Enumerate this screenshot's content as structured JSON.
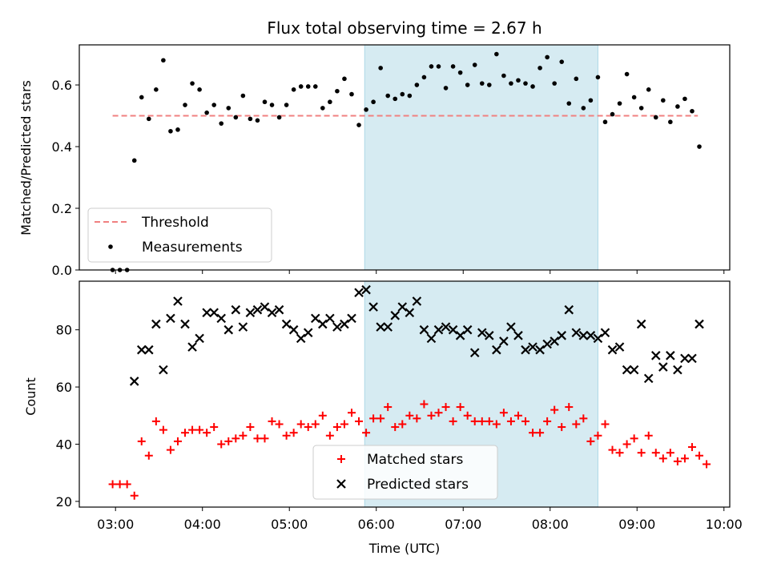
{
  "title": "Flux total observing time = 2.67 h",
  "colors": {
    "threshold": "#f08080",
    "measurements": "#000000",
    "matched": "#ff0000",
    "predicted": "#000000",
    "highlight": "#add8e6"
  },
  "chart_data": [
    {
      "type": "scatter",
      "ylabel": "Matched/Predicted stars",
      "ylim": [
        0,
        0.73
      ],
      "yticks": [
        "0.0",
        "0.2",
        "0.4",
        "0.6"
      ],
      "xlim": [
        "02:35",
        "10:04"
      ],
      "highlight_span": [
        "05:52",
        "08:33"
      ],
      "legend": {
        "position": "lower-left",
        "entries": [
          "Threshold",
          "Measurements"
        ]
      },
      "threshold": {
        "name": "Threshold",
        "y": 0.5,
        "x_range": [
          "02:58",
          "09:42"
        ]
      },
      "series": [
        {
          "name": "Measurements",
          "points": [
            [
              "02:58",
              0.0
            ],
            [
              "03:03",
              0.0
            ],
            [
              "03:08",
              0.0
            ],
            [
              "03:13",
              0.355
            ],
            [
              "03:18",
              0.56
            ],
            [
              "03:23",
              0.49
            ],
            [
              "03:28",
              0.585
            ],
            [
              "03:33",
              0.68
            ],
            [
              "03:38",
              0.45
            ],
            [
              "03:43",
              0.455
            ],
            [
              "03:48",
              0.535
            ],
            [
              "03:53",
              0.605
            ],
            [
              "03:58",
              0.585
            ],
            [
              "04:03",
              0.51
            ],
            [
              "04:08",
              0.535
            ],
            [
              "04:13",
              0.475
            ],
            [
              "04:18",
              0.525
            ],
            [
              "04:23",
              0.495
            ],
            [
              "04:28",
              0.565
            ],
            [
              "04:33",
              0.49
            ],
            [
              "04:38",
              0.485
            ],
            [
              "04:43",
              0.545
            ],
            [
              "04:48",
              0.535
            ],
            [
              "04:53",
              0.495
            ],
            [
              "04:58",
              0.535
            ],
            [
              "05:03",
              0.585
            ],
            [
              "05:08",
              0.595
            ],
            [
              "05:13",
              0.595
            ],
            [
              "05:18",
              0.595
            ],
            [
              "05:23",
              0.525
            ],
            [
              "05:28",
              0.545
            ],
            [
              "05:33",
              0.58
            ],
            [
              "05:38",
              0.62
            ],
            [
              "05:43",
              0.57
            ],
            [
              "05:48",
              0.47
            ],
            [
              "05:53",
              0.52
            ],
            [
              "05:58",
              0.545
            ],
            [
              "06:03",
              0.655
            ],
            [
              "06:08",
              0.565
            ],
            [
              "06:13",
              0.555
            ],
            [
              "06:18",
              0.57
            ],
            [
              "06:23",
              0.565
            ],
            [
              "06:28",
              0.6
            ],
            [
              "06:33",
              0.625
            ],
            [
              "06:38",
              0.66
            ],
            [
              "06:43",
              0.66
            ],
            [
              "06:48",
              0.59
            ],
            [
              "06:53",
              0.66
            ],
            [
              "06:58",
              0.64
            ],
            [
              "07:03",
              0.6
            ],
            [
              "07:08",
              0.665
            ],
            [
              "07:13",
              0.605
            ],
            [
              "07:18",
              0.6
            ],
            [
              "07:23",
              0.7
            ],
            [
              "07:28",
              0.63
            ],
            [
              "07:33",
              0.605
            ],
            [
              "07:38",
              0.615
            ],
            [
              "07:43",
              0.605
            ],
            [
              "07:48",
              0.595
            ],
            [
              "07:53",
              0.655
            ],
            [
              "07:58",
              0.69
            ],
            [
              "08:03",
              0.605
            ],
            [
              "08:08",
              0.675
            ],
            [
              "08:13",
              0.54
            ],
            [
              "08:18",
              0.62
            ],
            [
              "08:23",
              0.525
            ],
            [
              "08:28",
              0.55
            ],
            [
              "08:33",
              0.625
            ],
            [
              "08:38",
              0.48
            ],
            [
              "08:43",
              0.505
            ],
            [
              "08:48",
              0.54
            ],
            [
              "08:53",
              0.635
            ],
            [
              "08:58",
              0.56
            ],
            [
              "09:03",
              0.525
            ],
            [
              "09:08",
              0.585
            ],
            [
              "09:13",
              0.495
            ],
            [
              "09:18",
              0.55
            ],
            [
              "09:23",
              0.48
            ],
            [
              "09:28",
              0.53
            ],
            [
              "09:33",
              0.555
            ],
            [
              "09:38",
              0.515
            ],
            [
              "09:43",
              0.4
            ]
          ]
        }
      ]
    },
    {
      "type": "scatter",
      "ylabel": "Count",
      "xlabel": "Time (UTC)",
      "ylim": [
        18,
        97
      ],
      "yticks": [
        "20",
        "40",
        "60",
        "80"
      ],
      "xlim": [
        "02:35",
        "10:04"
      ],
      "xticks": [
        "03:00",
        "04:00",
        "05:00",
        "06:00",
        "07:00",
        "08:00",
        "09:00",
        "10:00"
      ],
      "highlight_span": [
        "05:52",
        "08:33"
      ],
      "legend": {
        "position": "lower-center",
        "entries": [
          "Matched stars",
          "Predicted stars"
        ]
      },
      "series": [
        {
          "name": "Matched stars",
          "marker": "plus",
          "points": [
            [
              "02:58",
              26
            ],
            [
              "03:03",
              26
            ],
            [
              "03:08",
              26
            ],
            [
              "03:13",
              22
            ],
            [
              "03:18",
              41
            ],
            [
              "03:23",
              36
            ],
            [
              "03:28",
              48
            ],
            [
              "03:33",
              45
            ],
            [
              "03:38",
              38
            ],
            [
              "03:43",
              41
            ],
            [
              "03:48",
              44
            ],
            [
              "03:53",
              45
            ],
            [
              "03:58",
              45
            ],
            [
              "04:03",
              44
            ],
            [
              "04:08",
              46
            ],
            [
              "04:13",
              40
            ],
            [
              "04:18",
              41
            ],
            [
              "04:23",
              42
            ],
            [
              "04:28",
              43
            ],
            [
              "04:33",
              46
            ],
            [
              "04:38",
              42
            ],
            [
              "04:43",
              42
            ],
            [
              "04:48",
              48
            ],
            [
              "04:53",
              47
            ],
            [
              "04:58",
              43
            ],
            [
              "05:03",
              44
            ],
            [
              "05:08",
              47
            ],
            [
              "05:13",
              46
            ],
            [
              "05:18",
              47
            ],
            [
              "05:23",
              50
            ],
            [
              "05:28",
              43
            ],
            [
              "05:33",
              46
            ],
            [
              "05:38",
              47
            ],
            [
              "05:43",
              51
            ],
            [
              "05:48",
              48
            ],
            [
              "05:53",
              44
            ],
            [
              "05:58",
              49
            ],
            [
              "06:03",
              49
            ],
            [
              "06:08",
              53
            ],
            [
              "06:13",
              46
            ],
            [
              "06:18",
              47
            ],
            [
              "06:23",
              50
            ],
            [
              "06:28",
              49
            ],
            [
              "06:33",
              54
            ],
            [
              "06:38",
              50
            ],
            [
              "06:43",
              51
            ],
            [
              "06:48",
              53
            ],
            [
              "06:53",
              48
            ],
            [
              "06:58",
              53
            ],
            [
              "07:03",
              50
            ],
            [
              "07:08",
              48
            ],
            [
              "07:13",
              48
            ],
            [
              "07:18",
              48
            ],
            [
              "07:23",
              47
            ],
            [
              "07:28",
              51
            ],
            [
              "07:33",
              48
            ],
            [
              "07:38",
              50
            ],
            [
              "07:43",
              48
            ],
            [
              "07:48",
              44
            ],
            [
              "07:53",
              44
            ],
            [
              "07:58",
              48
            ],
            [
              "08:03",
              52
            ],
            [
              "08:08",
              46
            ],
            [
              "08:13",
              53
            ],
            [
              "08:18",
              47
            ],
            [
              "08:23",
              49
            ],
            [
              "08:28",
              41
            ],
            [
              "08:33",
              43
            ],
            [
              "08:38",
              47
            ],
            [
              "08:43",
              38
            ],
            [
              "08:48",
              37
            ],
            [
              "08:53",
              40
            ],
            [
              "08:58",
              42
            ],
            [
              "09:03",
              37
            ],
            [
              "09:08",
              43
            ],
            [
              "09:13",
              37
            ],
            [
              "09:18",
              35
            ],
            [
              "09:23",
              37
            ],
            [
              "09:28",
              34
            ],
            [
              "09:33",
              35
            ],
            [
              "09:38",
              39
            ],
            [
              "09:43",
              36
            ],
            [
              "09:48",
              33
            ]
          ]
        },
        {
          "name": "Predicted stars",
          "marker": "x",
          "points": [
            [
              "03:13",
              62
            ],
            [
              "03:18",
              73
            ],
            [
              "03:23",
              73
            ],
            [
              "03:28",
              82
            ],
            [
              "03:33",
              66
            ],
            [
              "03:38",
              84
            ],
            [
              "03:43",
              90
            ],
            [
              "03:48",
              82
            ],
            [
              "03:53",
              74
            ],
            [
              "03:58",
              77
            ],
            [
              "04:03",
              86
            ],
            [
              "04:08",
              86
            ],
            [
              "04:13",
              84
            ],
            [
              "04:18",
              80
            ],
            [
              "04:23",
              87
            ],
            [
              "04:28",
              81
            ],
            [
              "04:33",
              86
            ],
            [
              "04:38",
              87
            ],
            [
              "04:43",
              88
            ],
            [
              "04:48",
              86
            ],
            [
              "04:53",
              87
            ],
            [
              "04:58",
              82
            ],
            [
              "05:03",
              80
            ],
            [
              "05:08",
              77
            ],
            [
              "05:13",
              79
            ],
            [
              "05:18",
              84
            ],
            [
              "05:23",
              82
            ],
            [
              "05:28",
              84
            ],
            [
              "05:33",
              81
            ],
            [
              "05:38",
              82
            ],
            [
              "05:43",
              84
            ],
            [
              "05:48",
              93
            ],
            [
              "05:53",
              94
            ],
            [
              "05:58",
              88
            ],
            [
              "06:03",
              81
            ],
            [
              "06:08",
              81
            ],
            [
              "06:13",
              85
            ],
            [
              "06:18",
              88
            ],
            [
              "06:23",
              86
            ],
            [
              "06:28",
              90
            ],
            [
              "06:33",
              80
            ],
            [
              "06:38",
              77
            ],
            [
              "06:43",
              80
            ],
            [
              "06:48",
              81
            ],
            [
              "06:53",
              80
            ],
            [
              "06:58",
              78
            ],
            [
              "07:03",
              80
            ],
            [
              "07:08",
              72
            ],
            [
              "07:13",
              79
            ],
            [
              "07:18",
              78
            ],
            [
              "07:23",
              73
            ],
            [
              "07:28",
              76
            ],
            [
              "07:33",
              81
            ],
            [
              "07:38",
              78
            ],
            [
              "07:43",
              73
            ],
            [
              "07:48",
              74
            ],
            [
              "07:53",
              73
            ],
            [
              "07:58",
              75
            ],
            [
              "08:03",
              76
            ],
            [
              "08:08",
              78
            ],
            [
              "08:13",
              87
            ],
            [
              "08:18",
              79
            ],
            [
              "08:23",
              78
            ],
            [
              "08:28",
              78
            ],
            [
              "08:33",
              77
            ],
            [
              "08:38",
              79
            ],
            [
              "08:43",
              73
            ],
            [
              "08:48",
              74
            ],
            [
              "08:53",
              66
            ],
            [
              "08:58",
              66
            ],
            [
              "09:03",
              82
            ],
            [
              "09:08",
              63
            ],
            [
              "09:13",
              71
            ],
            [
              "09:18",
              67
            ],
            [
              "09:23",
              71
            ],
            [
              "09:28",
              66
            ],
            [
              "09:33",
              70
            ],
            [
              "09:38",
              70
            ],
            [
              "09:43",
              82
            ]
          ]
        }
      ]
    }
  ]
}
